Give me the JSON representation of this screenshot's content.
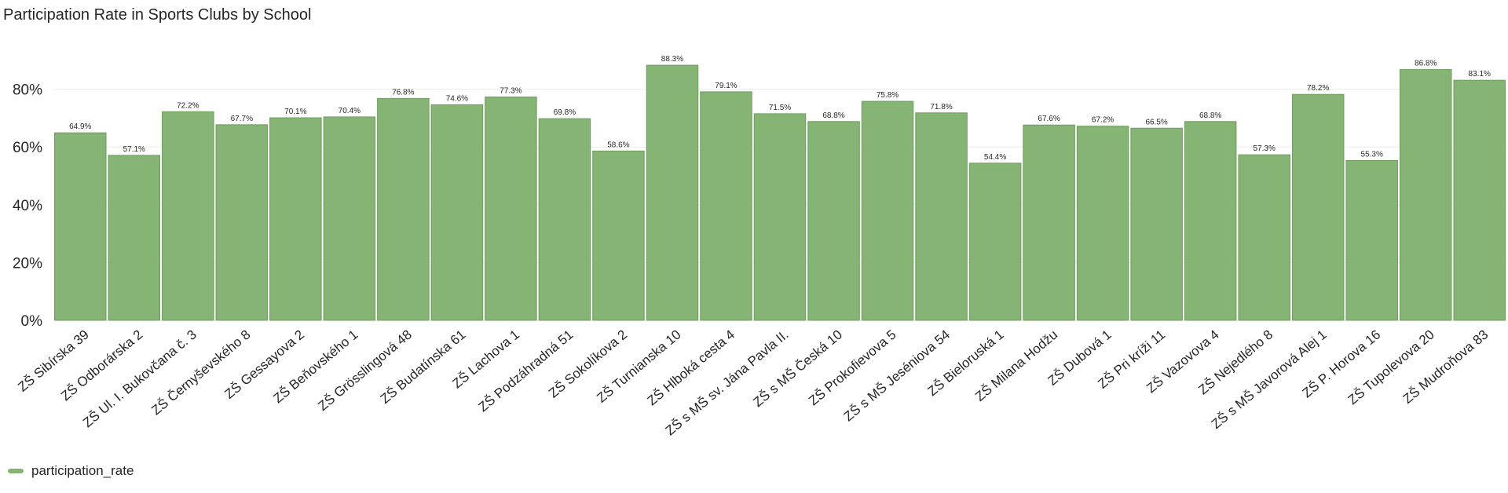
{
  "chart_data": {
    "type": "bar",
    "title": "Participation Rate in Sports Clubs by School",
    "xlabel": "",
    "ylabel": "",
    "ylim": [
      0,
      100
    ],
    "yticks": [
      0,
      20,
      40,
      60,
      80
    ],
    "ytick_format": "%",
    "grid": true,
    "legend_position": "bottom-left",
    "colors": {
      "bar": "#85b474",
      "bar_edge": "#6e9e5e"
    },
    "categories": [
      "ZŠ Sibírska 39",
      "ZŠ Odborárska 2",
      "ZŠ Ul. I. Bukovčana č. 3",
      "ZŠ Černyševského 8",
      "ZŠ Gessayova 2",
      "ZŠ Beňovského 1",
      "ZŠ Grösslingová 48",
      "ZŠ Budatínska 61",
      "ZŠ Lachova 1",
      "ZŠ Podzáhradná 51",
      "ZŠ Sokolíkova 2",
      "ZŠ Turnianska 10",
      "ZŠ Hlboká cesta 4",
      "ZŠ s MŠ sv. Jána Pavla II.",
      "ZŠ s MŠ Česká 10",
      "ZŠ Prokofievova 5",
      "ZŠ s MŠ Jeséniova 54",
      "ZŠ Bieloruská 1",
      "ZŠ Milana Hodžu",
      "ZŠ Dubová 1",
      "ZŠ Pri kríži 11",
      "ZŠ Vazovova 4",
      "ZŠ Nejedlého 8",
      "ZŠ s MŠ Javorová Alej 1",
      "ZŠ P. Horova 16",
      "ZŠ Tupolevova 20",
      "ZŠ Mudroňova 83"
    ],
    "series": [
      {
        "name": "participation_rate",
        "values": [
          64.9,
          57.1,
          72.2,
          67.7,
          70.1,
          70.4,
          76.8,
          74.6,
          77.3,
          69.8,
          58.6,
          88.3,
          79.1,
          71.5,
          68.8,
          75.8,
          71.8,
          54.4,
          67.6,
          67.2,
          66.5,
          68.8,
          57.3,
          78.2,
          55.3,
          86.8,
          83.1
        ]
      }
    ]
  }
}
